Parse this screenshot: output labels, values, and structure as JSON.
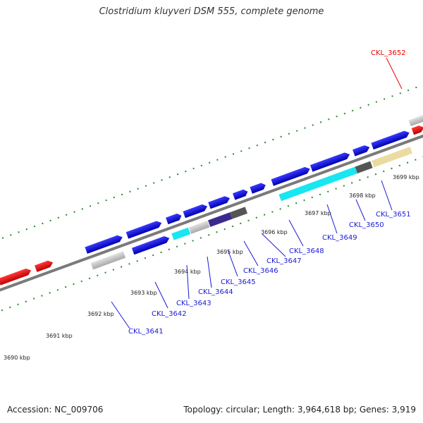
{
  "title": "Clostridium kluyveri DSM 555, complete genome",
  "footer": {
    "accession": "Accession: NC_009706",
    "summary": "Topology: circular; Length: 3,964,618 bp; Genes: 3,919"
  },
  "colors": {
    "gene_blue": "#0a0ad0",
    "gene_red": "#ee0000",
    "label_blue": "#1a1ad6",
    "label_red": "#ee0000",
    "tick_green": "#2a8a2a",
    "backbone": "#7a7a7a"
  },
  "coordinates": [
    "3690 kbp",
    "3691 kbp",
    "3692 kbp",
    "3693 kbp",
    "3694 kbp",
    "3695 kbp",
    "3696 kbp",
    "3697 kbp",
    "3698 kbp",
    "3699 kbp"
  ],
  "gene_labels": [
    {
      "id": "CKL_3641",
      "color": "blue"
    },
    {
      "id": "CKL_3642",
      "color": "blue"
    },
    {
      "id": "CKL_3643",
      "color": "blue"
    },
    {
      "id": "CKL_3644",
      "color": "blue"
    },
    {
      "id": "CKL_3645",
      "color": "blue"
    },
    {
      "id": "CKL_3646",
      "color": "blue"
    },
    {
      "id": "CKL_3647",
      "color": "blue"
    },
    {
      "id": "CKL_3648",
      "color": "blue"
    },
    {
      "id": "CKL_3649",
      "color": "blue"
    },
    {
      "id": "CKL_3650",
      "color": "blue"
    },
    {
      "id": "CKL_3651",
      "color": "blue"
    },
    {
      "id": "CKL_3652",
      "color": "red"
    }
  ]
}
